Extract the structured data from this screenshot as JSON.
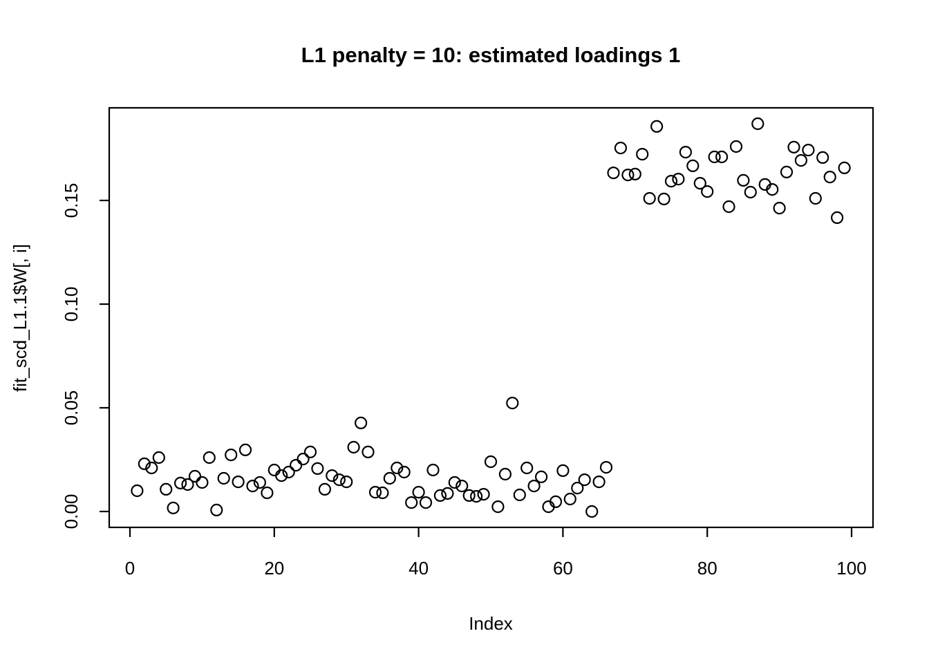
{
  "chart_data": {
    "type": "scatter",
    "title": "L1 penalty = 10: estimated loadings 1",
    "xlabel": "Index",
    "ylabel": "fit_scd_L1.1$W[, i]",
    "x_ticks": [
      0,
      20,
      40,
      60,
      80,
      100
    ],
    "y_ticks": [
      "0.00",
      "0.05",
      "0.10",
      "0.15"
    ],
    "y_tick_values": [
      0.0,
      0.05,
      0.1,
      0.15
    ],
    "xlim": [
      -2.9,
      103.0
    ],
    "ylim": [
      -0.0075,
      0.1945
    ],
    "grid": false,
    "marker": "open-circle",
    "marker_color": "#000000",
    "background_color": "#ffffff",
    "x": [
      1,
      2,
      3,
      4,
      5,
      6,
      7,
      8,
      9,
      10,
      11,
      12,
      13,
      14,
      15,
      16,
      17,
      18,
      19,
      20,
      21,
      22,
      23,
      24,
      25,
      26,
      27,
      28,
      29,
      30,
      31,
      32,
      33,
      34,
      35,
      36,
      37,
      38,
      39,
      40,
      41,
      42,
      43,
      44,
      45,
      46,
      47,
      48,
      49,
      50,
      51,
      52,
      53,
      54,
      55,
      56,
      57,
      58,
      59,
      60,
      61,
      62,
      63,
      64,
      65,
      66,
      67,
      68,
      69,
      70,
      71,
      72,
      73,
      74,
      75,
      76,
      77,
      78,
      79,
      80,
      81,
      82,
      83,
      84,
      85,
      86,
      87,
      88,
      89,
      90,
      91,
      92,
      93,
      94,
      95,
      96,
      97,
      98,
      99
    ],
    "values": [
      0.01,
      0.023,
      0.021,
      0.026,
      0.0107,
      0.0017,
      0.0137,
      0.013,
      0.017,
      0.014,
      0.026,
      0.0007,
      0.016,
      0.0273,
      0.0143,
      0.0297,
      0.0123,
      0.014,
      0.009,
      0.02,
      0.0173,
      0.019,
      0.0223,
      0.0253,
      0.0287,
      0.0207,
      0.0107,
      0.0173,
      0.0153,
      0.0143,
      0.031,
      0.0427,
      0.0287,
      0.0093,
      0.009,
      0.016,
      0.021,
      0.019,
      0.0043,
      0.0093,
      0.0043,
      0.02,
      0.0077,
      0.0087,
      0.014,
      0.0123,
      0.0077,
      0.0073,
      0.0083,
      0.024,
      0.0023,
      0.018,
      0.0523,
      0.008,
      0.021,
      0.0123,
      0.0167,
      0.0023,
      0.0047,
      0.0197,
      0.006,
      0.0113,
      0.0153,
      0.0,
      0.0143,
      0.0213,
      0.1633,
      0.1753,
      0.1623,
      0.1627,
      0.1723,
      0.151,
      0.1857,
      0.1507,
      0.1593,
      0.1603,
      0.1733,
      0.1667,
      0.1583,
      0.1543,
      0.171,
      0.171,
      0.147,
      0.176,
      0.1597,
      0.154,
      0.187,
      0.1577,
      0.1553,
      0.1463,
      0.1637,
      0.1757,
      0.1693,
      0.1743,
      0.151,
      0.1707,
      0.1613,
      0.1417,
      0.1657
    ]
  }
}
